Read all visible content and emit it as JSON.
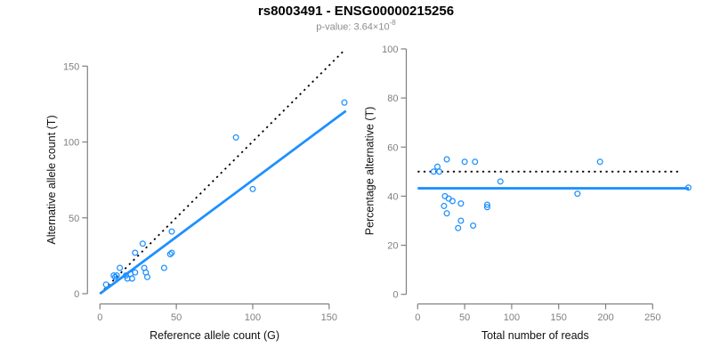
{
  "header": {
    "title": "rs8003491 - ENSG00000215256",
    "subtitle_prefix": "p-value: 3.64×10",
    "subtitle_exponent": "-8"
  },
  "colors": {
    "accent": "#1E90FF",
    "axis": "#808080",
    "dotted_line": "#000000",
    "subtitle_text": "#8c8c8c"
  },
  "chart_data": [
    {
      "id": "allele-count-scatter",
      "type": "scatter",
      "xlabel": "Reference allele count (G)",
      "ylabel": "Alternative allele count (T)",
      "xticks": [
        0,
        50,
        100,
        150
      ],
      "yticks": [
        0,
        50,
        100,
        150
      ],
      "xlim": [
        0,
        161
      ],
      "ylim": [
        0,
        163
      ],
      "grid": false,
      "points": [
        [
          4,
          6
        ],
        [
          9,
          12
        ],
        [
          10,
          11
        ],
        [
          11,
          12
        ],
        [
          13,
          17
        ],
        [
          17,
          12
        ],
        [
          18,
          10
        ],
        [
          20,
          13
        ],
        [
          21,
          10
        ],
        [
          23,
          14
        ],
        [
          23,
          27
        ],
        [
          28,
          33
        ],
        [
          29,
          17
        ],
        [
          30,
          14
        ],
        [
          31,
          11
        ],
        [
          42,
          17
        ],
        [
          46,
          26
        ],
        [
          47,
          27
        ],
        [
          47,
          41
        ],
        [
          89,
          103
        ],
        [
          100,
          69
        ],
        [
          160,
          126
        ]
      ],
      "lines": [
        {
          "name": "identity-line",
          "style": "dotted",
          "color": "#000000",
          "from": [
            0,
            0
          ],
          "to": [
            160,
            160.5
          ]
        },
        {
          "name": "regression-line",
          "style": "solid",
          "color": "#1E90FF",
          "from": [
            0,
            0
          ],
          "to": [
            161,
            120.5
          ]
        }
      ]
    },
    {
      "id": "percentage-scatter",
      "type": "scatter",
      "xlabel": "Total number of reads",
      "ylabel": "Percentage alternative (T)",
      "xticks": [
        0,
        50,
        100,
        150,
        200,
        250
      ],
      "yticks": [
        0,
        20,
        40,
        60,
        80,
        100
      ],
      "xlim": [
        0,
        289
      ],
      "ylim": [
        0,
        100
      ],
      "grid": false,
      "points": [
        [
          17,
          50
        ],
        [
          21,
          52
        ],
        [
          23,
          50
        ],
        [
          28,
          36
        ],
        [
          29,
          40
        ],
        [
          31,
          55
        ],
        [
          31,
          33
        ],
        [
          33,
          39
        ],
        [
          37,
          38
        ],
        [
          43,
          27
        ],
        [
          46,
          30
        ],
        [
          46,
          37
        ],
        [
          50,
          54
        ],
        [
          59,
          28
        ],
        [
          61,
          54
        ],
        [
          74,
          36.5
        ],
        [
          74,
          35.5
        ],
        [
          88,
          46
        ],
        [
          170,
          41
        ],
        [
          194,
          54
        ],
        [
          288,
          43.5
        ]
      ],
      "lines": [
        {
          "name": "fifty-percent-reference-line",
          "style": "dotted",
          "color": "#000000",
          "from": [
            0,
            50
          ],
          "to": [
            281,
            50
          ]
        },
        {
          "name": "mean-percentage-line",
          "style": "solid",
          "color": "#1E90FF",
          "from": [
            0,
            43.2
          ],
          "to": [
            288.5,
            43.2
          ]
        }
      ]
    }
  ]
}
